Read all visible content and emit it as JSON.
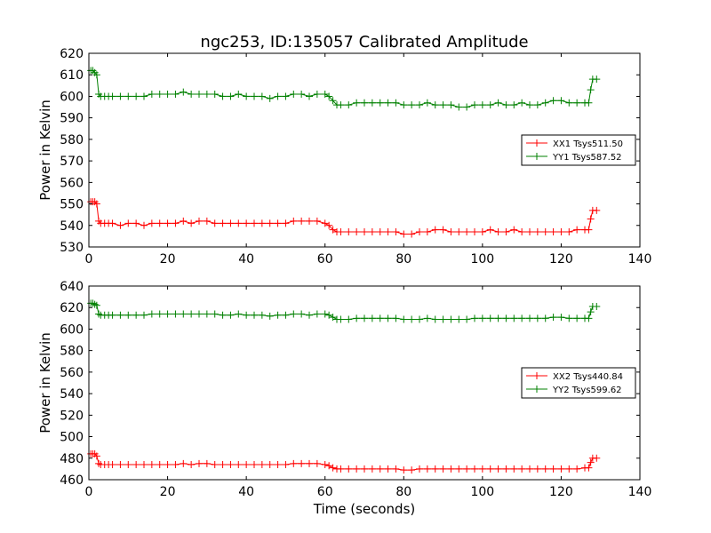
{
  "figure": {
    "title": "ngc253, ID:135057 Calibrated Amplitude",
    "xlabel": "Time (seconds)"
  },
  "colors": {
    "xx": "#ff0000",
    "yy": "#008000"
  },
  "chart_data": [
    {
      "type": "line",
      "title": "ngc253, ID:135057 Calibrated Amplitude",
      "xlabel": "",
      "ylabel": "Power in Kelvin",
      "xlim": [
        0,
        140
      ],
      "ylim": [
        530,
        620
      ],
      "xticks": [
        0,
        20,
        40,
        60,
        80,
        100,
        120,
        140
      ],
      "yticks": [
        530,
        540,
        550,
        560,
        570,
        580,
        590,
        600,
        610,
        620
      ],
      "legend": "center-right",
      "grid": false,
      "series": [
        {
          "name": "XX1 Tsys511.50",
          "color": "#ff0000",
          "marker": "+",
          "x": [
            0.5,
            1,
            1.5,
            2,
            2.5,
            3,
            4,
            5,
            6,
            8,
            10,
            12,
            14,
            16,
            18,
            20,
            22,
            24,
            26,
            28,
            30,
            32,
            34,
            36,
            38,
            40,
            42,
            44,
            46,
            48,
            50,
            52,
            54,
            56,
            58,
            60,
            61,
            62,
            63,
            64,
            66,
            68,
            70,
            72,
            74,
            76,
            78,
            80,
            82,
            84,
            86,
            88,
            90,
            92,
            94,
            96,
            98,
            100,
            102,
            104,
            106,
            108,
            110,
            112,
            114,
            116,
            118,
            120,
            122,
            124,
            126,
            127,
            127.5,
            128,
            129
          ],
          "y": [
            551,
            551,
            551,
            550,
            542,
            541,
            541,
            541,
            541,
            540,
            541,
            541,
            540,
            541,
            541,
            541,
            541,
            542,
            541,
            542,
            542,
            541,
            541,
            541,
            541,
            541,
            541,
            541,
            541,
            541,
            541,
            542,
            542,
            542,
            542,
            541,
            540,
            538,
            537,
            537,
            537,
            537,
            537,
            537,
            537,
            537,
            537,
            536,
            536,
            537,
            537,
            538,
            538,
            537,
            537,
            537,
            537,
            537,
            538,
            537,
            537,
            538,
            537,
            537,
            537,
            537,
            537,
            537,
            537,
            538,
            538,
            538,
            543,
            547,
            547
          ]
        },
        {
          "name": "YY1 Tsys587.52",
          "color": "#008000",
          "marker": "+",
          "x": [
            0.5,
            1,
            1.5,
            2,
            2.5,
            3,
            4,
            5,
            6,
            8,
            10,
            12,
            14,
            16,
            18,
            20,
            22,
            24,
            26,
            28,
            30,
            32,
            34,
            36,
            38,
            40,
            42,
            44,
            46,
            48,
            50,
            52,
            54,
            56,
            58,
            60,
            61,
            62,
            63,
            64,
            66,
            68,
            70,
            72,
            74,
            76,
            78,
            80,
            82,
            84,
            86,
            88,
            90,
            92,
            94,
            96,
            98,
            100,
            102,
            104,
            106,
            108,
            110,
            112,
            114,
            116,
            118,
            120,
            122,
            124,
            126,
            127,
            127.5,
            128,
            129
          ],
          "y": [
            612,
            612,
            611,
            610,
            601,
            600,
            600,
            600,
            600,
            600,
            600,
            600,
            600,
            601,
            601,
            601,
            601,
            602,
            601,
            601,
            601,
            601,
            600,
            600,
            601,
            600,
            600,
            600,
            599,
            600,
            600,
            601,
            601,
            600,
            601,
            601,
            600,
            598,
            596,
            596,
            596,
            597,
            597,
            597,
            597,
            597,
            597,
            596,
            596,
            596,
            597,
            596,
            596,
            596,
            595,
            595,
            596,
            596,
            596,
            597,
            596,
            596,
            597,
            596,
            596,
            597,
            598,
            598,
            597,
            597,
            597,
            597,
            603,
            608,
            608
          ]
        }
      ]
    },
    {
      "type": "line",
      "title": "",
      "xlabel": "Time (seconds)",
      "ylabel": "Power in Kelvin",
      "xlim": [
        0,
        140
      ],
      "ylim": [
        460,
        640
      ],
      "xticks": [
        0,
        20,
        40,
        60,
        80,
        100,
        120,
        140
      ],
      "yticks": [
        460,
        480,
        500,
        520,
        540,
        560,
        580,
        600,
        620,
        640
      ],
      "legend": "center-right",
      "grid": false,
      "series": [
        {
          "name": "XX2 Tsys440.84",
          "color": "#ff0000",
          "marker": "+",
          "x": [
            0.5,
            1,
            1.5,
            2,
            2.5,
            3,
            4,
            5,
            6,
            8,
            10,
            12,
            14,
            16,
            18,
            20,
            22,
            24,
            26,
            28,
            30,
            32,
            34,
            36,
            38,
            40,
            42,
            44,
            46,
            48,
            50,
            52,
            54,
            56,
            58,
            60,
            61,
            62,
            63,
            64,
            66,
            68,
            70,
            72,
            74,
            76,
            78,
            80,
            82,
            84,
            86,
            88,
            90,
            92,
            94,
            96,
            98,
            100,
            102,
            104,
            106,
            108,
            110,
            112,
            114,
            116,
            118,
            120,
            122,
            124,
            126,
            127,
            127.5,
            128,
            129
          ],
          "y": [
            484,
            484,
            484,
            482,
            475,
            474,
            474,
            474,
            474,
            474,
            474,
            474,
            474,
            474,
            474,
            474,
            474,
            475,
            474,
            475,
            475,
            474,
            474,
            474,
            474,
            474,
            474,
            474,
            474,
            474,
            474,
            475,
            475,
            475,
            475,
            474,
            473,
            471,
            470,
            470,
            470,
            470,
            470,
            470,
            470,
            470,
            470,
            469,
            469,
            470,
            470,
            470,
            470,
            470,
            470,
            470,
            470,
            470,
            470,
            470,
            470,
            470,
            470,
            470,
            470,
            470,
            470,
            470,
            470,
            470,
            471,
            471,
            476,
            480,
            480
          ]
        },
        {
          "name": "YY2 Tsys599.62",
          "color": "#008000",
          "marker": "+",
          "x": [
            0.5,
            1,
            1.5,
            2,
            2.5,
            3,
            4,
            5,
            6,
            8,
            10,
            12,
            14,
            16,
            18,
            20,
            22,
            24,
            26,
            28,
            30,
            32,
            34,
            36,
            38,
            40,
            42,
            44,
            46,
            48,
            50,
            52,
            54,
            56,
            58,
            60,
            61,
            62,
            63,
            64,
            66,
            68,
            70,
            72,
            74,
            76,
            78,
            80,
            82,
            84,
            86,
            88,
            90,
            92,
            94,
            96,
            98,
            100,
            102,
            104,
            106,
            108,
            110,
            112,
            114,
            116,
            118,
            120,
            122,
            124,
            126,
            127,
            127.5,
            128,
            129
          ],
          "y": [
            624,
            624,
            623,
            622,
            614,
            613,
            613,
            613,
            613,
            613,
            613,
            613,
            613,
            614,
            614,
            614,
            614,
            614,
            614,
            614,
            614,
            614,
            613,
            613,
            614,
            613,
            613,
            613,
            612,
            613,
            613,
            614,
            614,
            613,
            614,
            614,
            613,
            611,
            609,
            609,
            609,
            610,
            610,
            610,
            610,
            610,
            610,
            609,
            609,
            609,
            610,
            609,
            609,
            609,
            609,
            609,
            610,
            610,
            610,
            610,
            610,
            610,
            610,
            610,
            610,
            610,
            611,
            611,
            610,
            610,
            610,
            610,
            616,
            621,
            621
          ]
        }
      ]
    }
  ]
}
